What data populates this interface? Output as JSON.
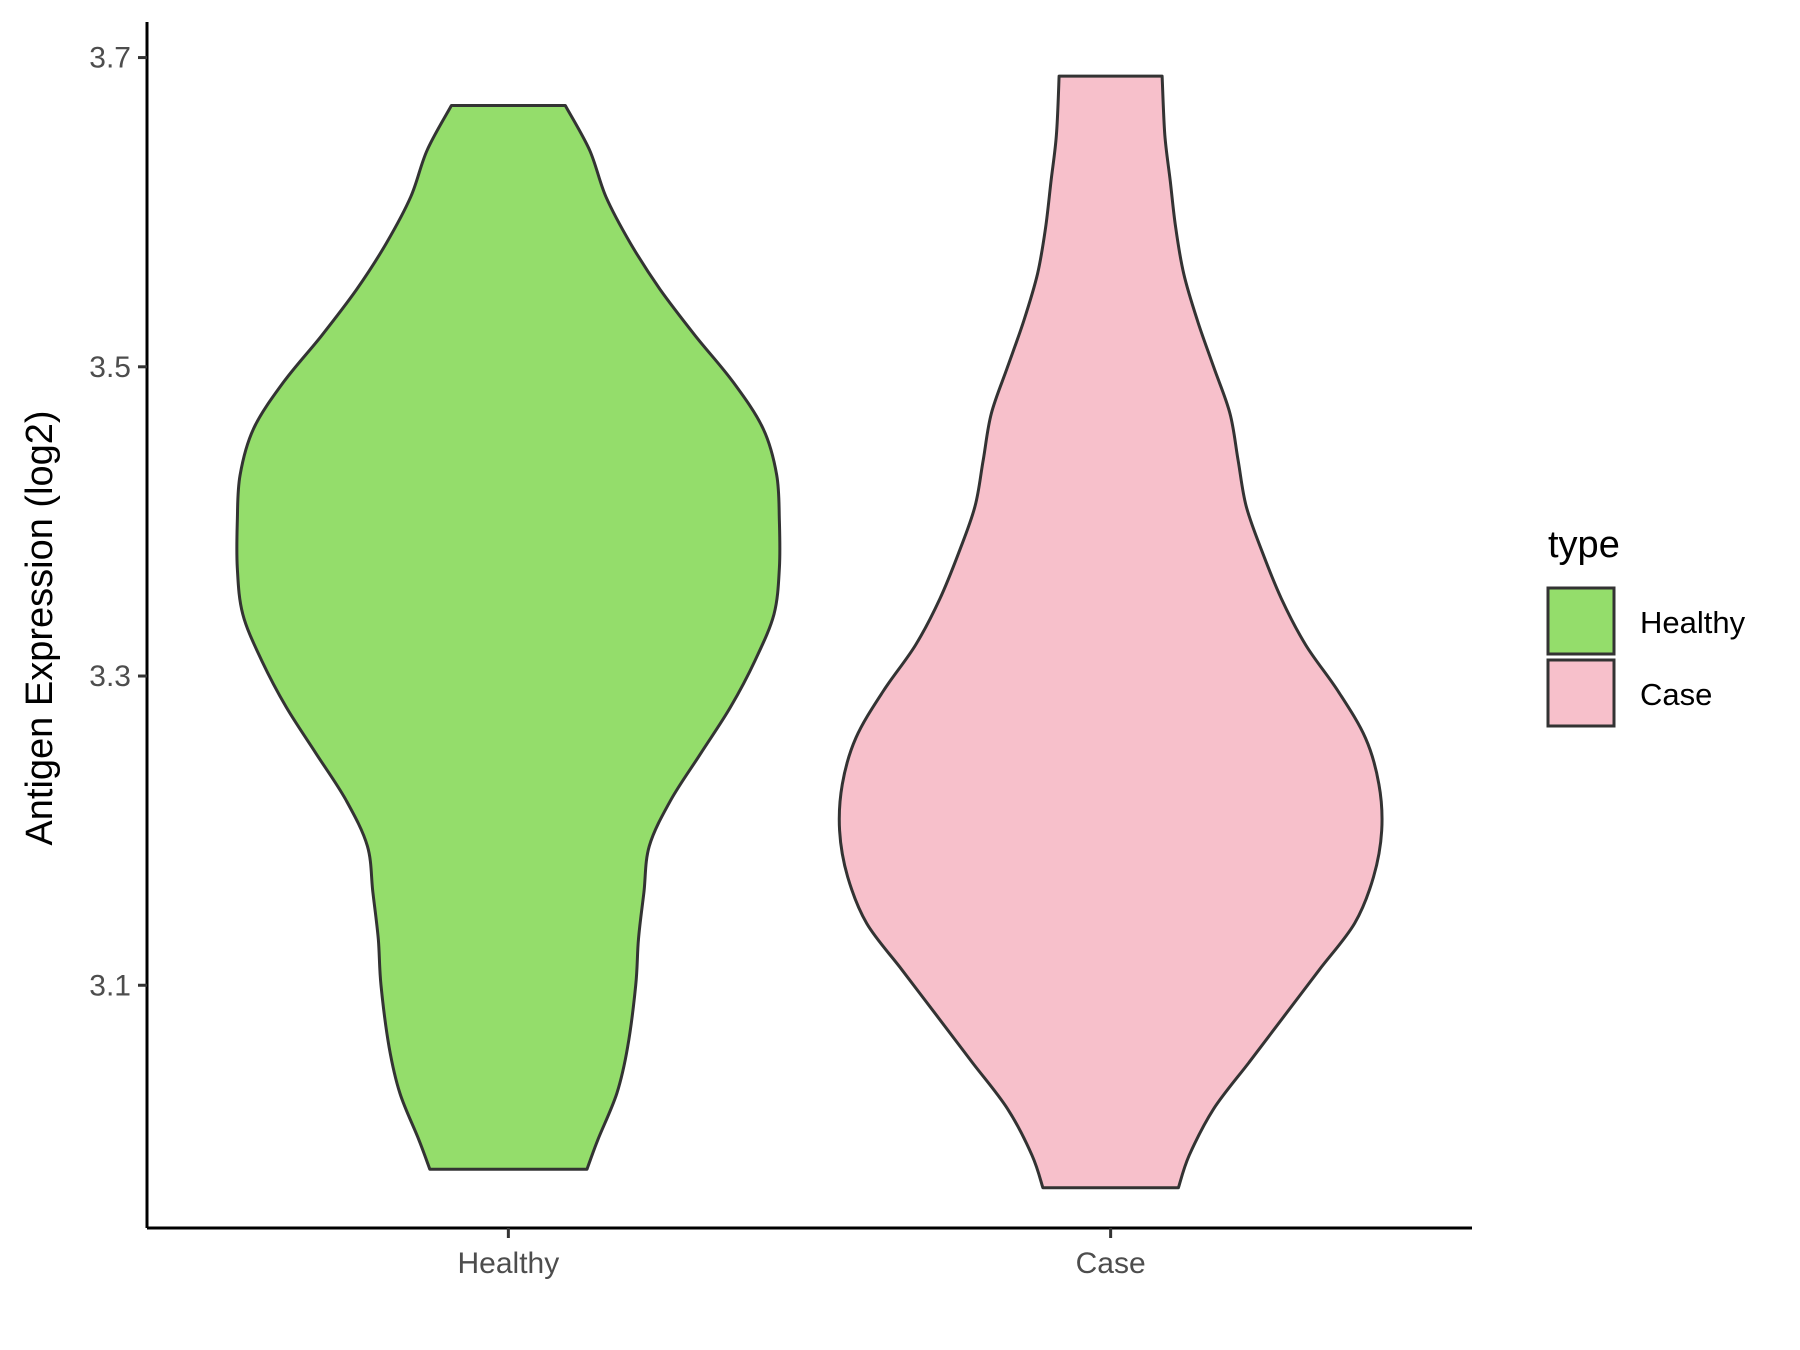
{
  "chart_data": {
    "type": "violin",
    "ylabel": "Antigen Expression (log2)",
    "xlabel": "",
    "ylim": [
      2.943,
      3.723
    ],
    "yticks": [
      3.1,
      3.3,
      3.5,
      3.7
    ],
    "ytick_labels": [
      "3.1",
      "3.3",
      "3.5",
      "3.7"
    ],
    "categories": [
      "Healthy",
      "Case"
    ],
    "grid": false,
    "legend": {
      "title": "type",
      "position": "right",
      "entries": [
        {
          "label": "Healthy",
          "color": "#94DD6B"
        },
        {
          "label": "Case",
          "color": "#F7C0CB"
        }
      ]
    },
    "series": [
      {
        "name": "Healthy",
        "color": "#94DD6B",
        "min": 2.981,
        "max": 3.669,
        "density_profile": [
          [
            2.981,
            0.29
          ],
          [
            3.0,
            0.33
          ],
          [
            3.03,
            0.4
          ],
          [
            3.06,
            0.44
          ],
          [
            3.1,
            0.47
          ],
          [
            3.13,
            0.48
          ],
          [
            3.16,
            0.5
          ],
          [
            3.19,
            0.52
          ],
          [
            3.22,
            0.6
          ],
          [
            3.25,
            0.71
          ],
          [
            3.28,
            0.82
          ],
          [
            3.31,
            0.91
          ],
          [
            3.34,
            0.98
          ],
          [
            3.37,
            1.0
          ],
          [
            3.4,
            1.0
          ],
          [
            3.43,
            0.99
          ],
          [
            3.46,
            0.94
          ],
          [
            3.49,
            0.83
          ],
          [
            3.52,
            0.69
          ],
          [
            3.55,
            0.56
          ],
          [
            3.58,
            0.45
          ],
          [
            3.61,
            0.36
          ],
          [
            3.64,
            0.3
          ],
          [
            3.669,
            0.21
          ]
        ]
      },
      {
        "name": "Case",
        "color": "#F7C0CB",
        "min": 2.969,
        "max": 3.688,
        "density_profile": [
          [
            2.969,
            0.25
          ],
          [
            2.99,
            0.29
          ],
          [
            3.02,
            0.38
          ],
          [
            3.05,
            0.51
          ],
          [
            3.08,
            0.64
          ],
          [
            3.11,
            0.77
          ],
          [
            3.14,
            0.9
          ],
          [
            3.17,
            0.97
          ],
          [
            3.2,
            1.0
          ],
          [
            3.23,
            0.99
          ],
          [
            3.26,
            0.94
          ],
          [
            3.29,
            0.84
          ],
          [
            3.32,
            0.72
          ],
          [
            3.35,
            0.63
          ],
          [
            3.38,
            0.56
          ],
          [
            3.41,
            0.5
          ],
          [
            3.44,
            0.47
          ],
          [
            3.47,
            0.44
          ],
          [
            3.5,
            0.38
          ],
          [
            3.53,
            0.32
          ],
          [
            3.56,
            0.27
          ],
          [
            3.59,
            0.24
          ],
          [
            3.62,
            0.22
          ],
          [
            3.65,
            0.2
          ],
          [
            3.688,
            0.19
          ]
        ]
      }
    ]
  }
}
